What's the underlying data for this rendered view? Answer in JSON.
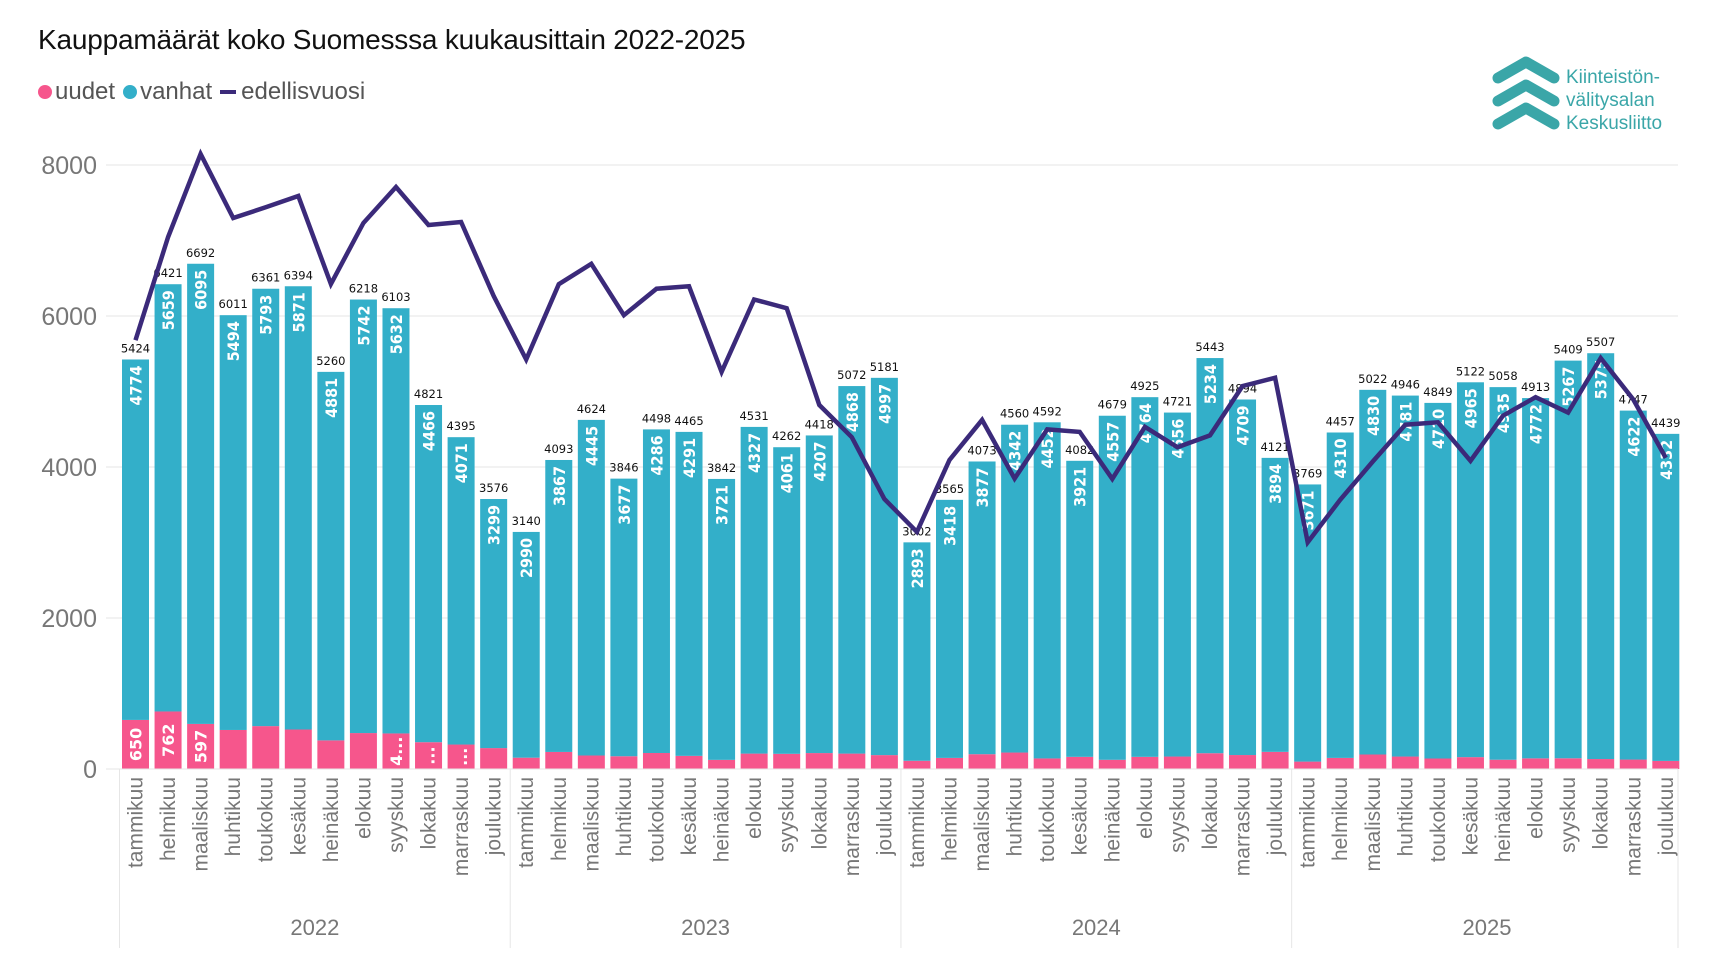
{
  "colors": {
    "uudet": "#f6568c",
    "vanhat": "#33afc9",
    "edellisvuosi": "#3b2a7a",
    "logo": "#3aa6a8",
    "grid": "#e6e6e6",
    "axis_text": "#777777"
  },
  "logo": {
    "icon": "chevron-up-triple-icon",
    "lines": [
      "Kiinteistön-",
      "välitysalan",
      "Keskusliitto"
    ]
  },
  "chart_data": {
    "type": "bar",
    "stacked": true,
    "title": "Kauppamäärät koko Suomesssa kuukausittain 2022-2025",
    "legend": [
      {
        "name": "uudet",
        "marker": "dot"
      },
      {
        "name": "vanhat",
        "marker": "dot"
      },
      {
        "name": "edellisvuosi",
        "marker": "line"
      }
    ],
    "legend_position": "top-left",
    "xlabel": "",
    "ylabel": "",
    "ylim": [
      0,
      8000
    ],
    "yticks": [
      "0",
      "2000",
      "4000",
      "6000",
      "8000"
    ],
    "grid": true,
    "years": [
      "2022",
      "2023",
      "2024",
      "2025"
    ],
    "months": [
      "tammikuu",
      "helmikuu",
      "maaliskuu",
      "huhtikuu",
      "toukokuu",
      "kesäkuu",
      "heinäkuu",
      "elokuu",
      "syyskuu",
      "lokakuu",
      "marraskuu",
      "joulukuu"
    ],
    "series": [
      {
        "name": "uudet",
        "type": "bar",
        "values": [
          650,
          762,
          597,
          517,
          568,
          523,
          379,
          476,
          471,
          355,
          324,
          277,
          150,
          226,
          179,
          169,
          212,
          174,
          121,
          204,
          201,
          211,
          204,
          184,
          109,
          147,
          196,
          218,
          140,
          161,
          122,
          161,
          165,
          209,
          185,
          227,
          98,
          147,
          192,
          165,
          139,
          157,
          123,
          141,
          142,
          132,
          125,
          107
        ],
        "labels": [
          "650",
          "762",
          "597",
          "",
          "",
          "",
          "",
          "",
          "4...",
          "...",
          "...",
          "",
          "",
          "",
          "",
          "",
          "",
          "",
          "",
          "",
          "",
          "",
          "",
          "",
          "",
          "",
          "",
          "",
          "",
          "",
          "",
          "",
          "",
          "",
          "",
          "",
          "",
          "",
          "",
          "",
          "",
          "",
          "",
          "",
          "",
          "",
          "",
          ""
        ]
      },
      {
        "name": "vanhat",
        "type": "bar",
        "values": [
          4774,
          5659,
          6095,
          5494,
          5793,
          5871,
          4881,
          5742,
          5632,
          4466,
          4071,
          3299,
          2990,
          3867,
          4445,
          3677,
          4286,
          4291,
          3721,
          4327,
          4061,
          4207,
          4868,
          4997,
          2893,
          3418,
          3877,
          4342,
          4452,
          3921,
          4557,
          4764,
          4556,
          5234,
          4709,
          3894,
          3671,
          4310,
          4830,
          4781,
          4710,
          4965,
          4935,
          4772,
          5267,
          5375,
          4622,
          4332
        ]
      },
      {
        "name": "edellisvuosi",
        "type": "line",
        "values": [
          5680,
          7046,
          8146,
          7298,
          7440,
          7589,
          6424,
          7232,
          7709,
          7205,
          7245,
          6265,
          5424,
          6421,
          6692,
          6011,
          6361,
          6394,
          5260,
          6218,
          6103,
          4821,
          4395,
          3576,
          3140,
          4093,
          4624,
          3846,
          4498,
          4465,
          3842,
          4531,
          4262,
          4418,
          5072,
          5181,
          3002,
          3565,
          4073,
          4560,
          4592,
          4082,
          4679,
          4925,
          4721,
          5443,
          4894,
          4121
        ]
      }
    ],
    "totals": [
      5424,
      6421,
      6692,
      6011,
      6361,
      6394,
      5260,
      6218,
      6103,
      4821,
      4395,
      3576,
      3140,
      4093,
      4624,
      3846,
      4498,
      4465,
      3842,
      4531,
      4262,
      4418,
      5072,
      5181,
      3002,
      3565,
      4073,
      4560,
      4592,
      4082,
      4679,
      4925,
      4721,
      5443,
      4894,
      4121,
      3769,
      4457,
      5022,
      4946,
      4849,
      5122,
      5058,
      4913,
      5409,
      5507,
      4747,
      4439
    ]
  }
}
